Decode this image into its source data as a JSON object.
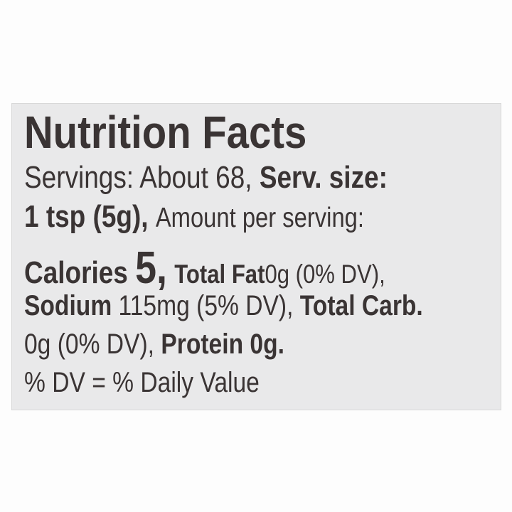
{
  "title": "Nutrition Facts",
  "servings": {
    "text": "Servings: About 68,",
    "size_label": "Serv. size:"
  },
  "serving_size": {
    "value": "1 tsp (5g),",
    "amount_label": "Amount per serving:"
  },
  "calories": {
    "label": "Calories",
    "value": "5,"
  },
  "total_fat": {
    "label": "Total Fat",
    "value": "0g (0% DV),"
  },
  "sodium": {
    "label": "Sodium",
    "value": "115mg (5% DV),"
  },
  "total_carb": {
    "label": "Total Carb.",
    "value": "0g (0% DV),"
  },
  "protein": {
    "label": "Protein 0g."
  },
  "footnote": "% DV = % Daily Value",
  "colors": {
    "label_bg": "#e9e9ea",
    "text": "#3a3434"
  }
}
